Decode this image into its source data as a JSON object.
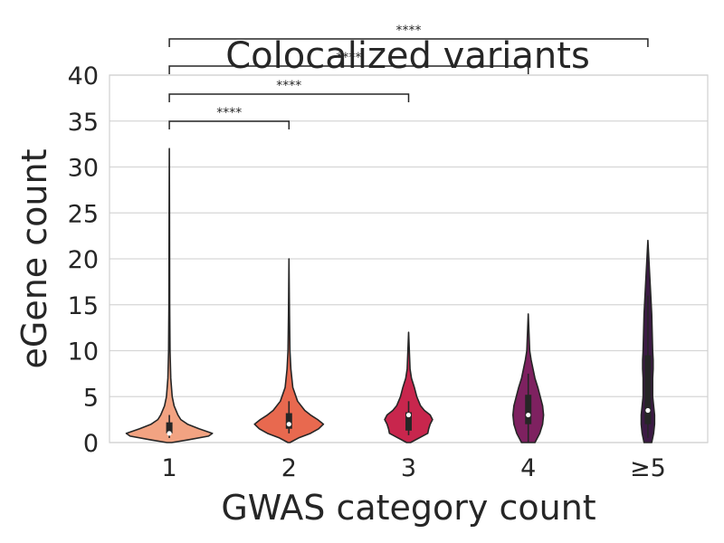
{
  "chart_data": {
    "type": "violin",
    "title": "Colocalized variants",
    "xlabel": "GWAS category count",
    "ylabel": "eGene count",
    "ylim": [
      0,
      40
    ],
    "yticks": [
      0,
      5,
      10,
      15,
      20,
      25,
      30,
      35,
      40
    ],
    "grid": "horizontal",
    "categories": [
      "1",
      "2",
      "3",
      "4",
      "≥5"
    ],
    "colors": [
      "#f2a382",
      "#e8694f",
      "#c8264d",
      "#7e2160",
      "#3c1a45"
    ],
    "violins": [
      {
        "category": "1",
        "min": 0,
        "max": 32,
        "q1": 1,
        "median": 1,
        "q3": 2.2,
        "whisker_low": 0.5,
        "whisker_high": 3,
        "profile": [
          [
            0,
            0.05
          ],
          [
            0.3,
            0.4
          ],
          [
            0.7,
            0.82
          ],
          [
            1,
            0.9
          ],
          [
            1.5,
            0.62
          ],
          [
            2,
            0.38
          ],
          [
            2.5,
            0.24
          ],
          [
            3,
            0.18
          ],
          [
            4,
            0.1
          ],
          [
            5,
            0.06
          ],
          [
            7,
            0.03
          ],
          [
            10,
            0.015
          ],
          [
            15,
            0.008
          ],
          [
            20,
            0.006
          ],
          [
            25,
            0.004
          ],
          [
            32,
            0
          ]
        ]
      },
      {
        "category": "2",
        "min": 0,
        "max": 20,
        "q1": 1.5,
        "median": 2,
        "q3": 3.2,
        "whisker_low": 1,
        "whisker_high": 4.5,
        "profile": [
          [
            0,
            0.02
          ],
          [
            0.5,
            0.2
          ],
          [
            1,
            0.45
          ],
          [
            1.5,
            0.62
          ],
          [
            2,
            0.72
          ],
          [
            2.5,
            0.6
          ],
          [
            3,
            0.45
          ],
          [
            3.5,
            0.33
          ],
          [
            4.5,
            0.18
          ],
          [
            6,
            0.08
          ],
          [
            8,
            0.04
          ],
          [
            10,
            0.02
          ],
          [
            14,
            0.01
          ],
          [
            20,
            0
          ]
        ]
      },
      {
        "category": "3",
        "min": 0,
        "max": 12,
        "q1": 1.3,
        "median": 3,
        "q3": 3.3,
        "whisker_low": 0.8,
        "whisker_high": 4.5,
        "profile": [
          [
            0,
            0.04
          ],
          [
            0.5,
            0.22
          ],
          [
            1,
            0.4
          ],
          [
            1.5,
            0.42
          ],
          [
            2,
            0.45
          ],
          [
            2.5,
            0.5
          ],
          [
            3,
            0.45
          ],
          [
            3.5,
            0.33
          ],
          [
            4,
            0.25
          ],
          [
            5,
            0.17
          ],
          [
            6,
            0.12
          ],
          [
            7,
            0.06
          ],
          [
            8,
            0.03
          ],
          [
            10,
            0.015
          ],
          [
            12,
            0
          ]
        ]
      },
      {
        "category": "4",
        "min": 0,
        "max": 14,
        "q1": 2,
        "median": 3,
        "q3": 5.2,
        "whisker_low": 0,
        "whisker_high": 7.5,
        "profile": [
          [
            0,
            0.14
          ],
          [
            1,
            0.24
          ],
          [
            2,
            0.3
          ],
          [
            3,
            0.32
          ],
          [
            4,
            0.3
          ],
          [
            5,
            0.25
          ],
          [
            6,
            0.2
          ],
          [
            7,
            0.14
          ],
          [
            8,
            0.1
          ],
          [
            9,
            0.06
          ],
          [
            10,
            0.03
          ],
          [
            12,
            0.015
          ],
          [
            14,
            0
          ]
        ]
      },
      {
        "category": "≥5",
        "min": 0,
        "max": 22,
        "q1": 2,
        "median": 3.5,
        "q3": 9.5,
        "whisker_low": 0.5,
        "whisker_high": 16,
        "profile": [
          [
            0,
            0.08
          ],
          [
            1,
            0.12
          ],
          [
            2,
            0.14
          ],
          [
            3,
            0.14
          ],
          [
            4,
            0.12
          ],
          [
            5,
            0.1
          ],
          [
            6,
            0.1
          ],
          [
            7,
            0.1
          ],
          [
            8,
            0.11
          ],
          [
            9,
            0.11
          ],
          [
            10,
            0.1
          ],
          [
            12,
            0.09
          ],
          [
            14,
            0.08
          ],
          [
            16,
            0.06
          ],
          [
            18,
            0.04
          ],
          [
            20,
            0.02
          ],
          [
            22,
            0
          ]
        ]
      }
    ],
    "annotations": [
      {
        "from": "1",
        "to": "2",
        "label": "****"
      },
      {
        "from": "1",
        "to": "3",
        "label": "****"
      },
      {
        "from": "1",
        "to": "4",
        "label": "****"
      },
      {
        "from": "1",
        "to": "≥5",
        "label": "****"
      }
    ]
  }
}
